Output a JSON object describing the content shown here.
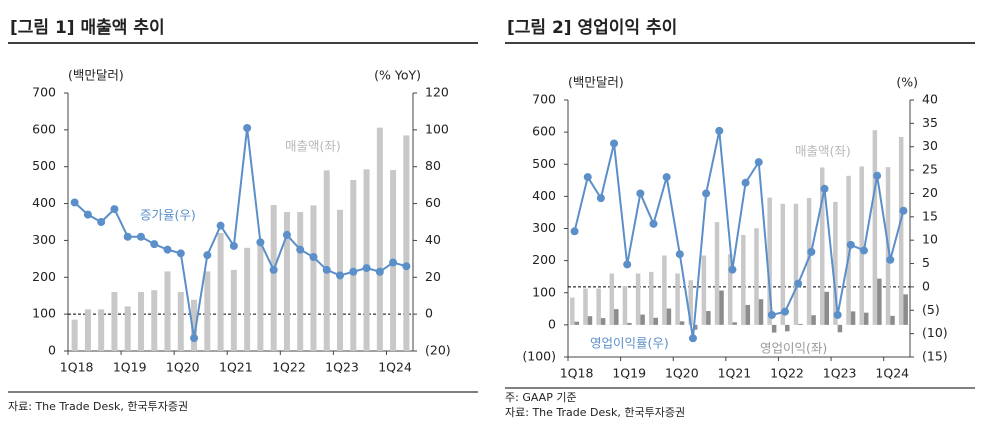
{
  "charts_title_note": null,
  "chart_data": [
    {
      "type": "combo",
      "title": "[그림 1] 매출액 추이",
      "ylabel": "(백만달러)",
      "y2label": "(% YoY)",
      "source": "자료: The Trade Desk, 한국투자증권",
      "categories": [
        "1Q18",
        null,
        null,
        null,
        "1Q19",
        null,
        null,
        null,
        "1Q20",
        null,
        null,
        null,
        "1Q21",
        null,
        null,
        null,
        "1Q22",
        null,
        null,
        null,
        "1Q23",
        null,
        null,
        null,
        "1Q24",
        null
      ],
      "series": [
        {
          "name": "매출액(좌)",
          "kind": "bar",
          "color": "#c8c8c8",
          "values": [
            85,
            113,
            113,
            160,
            121,
            160,
            165,
            216,
            160,
            139,
            216,
            320,
            220,
            280,
            301,
            396,
            377,
            377,
            395,
            490,
            383,
            464,
            493,
            606,
            491,
            585
          ]
        },
        {
          "name": "증가율(우)",
          "kind": "line",
          "axis": "y2",
          "color": "#5b8fc9",
          "values": [
            60.6,
            54,
            50,
            57,
            42,
            42,
            38,
            35,
            33,
            -13,
            32,
            48,
            37,
            101,
            39,
            24,
            43,
            35,
            31,
            24,
            21,
            23,
            25,
            23,
            28,
            26
          ]
        }
      ],
      "ylim": [
        0,
        700
      ],
      "yticks": [
        0,
        100,
        200,
        300,
        400,
        500,
        600,
        700
      ],
      "y2lim": [
        -20,
        120
      ],
      "y2ticks": [
        {
          "value": -20,
          "label": "(20)"
        },
        0,
        20,
        40,
        60,
        80,
        100,
        120
      ]
    },
    {
      "type": "combo",
      "title": "[그림 2] 영업이익 추이",
      "ylabel": "(백만달러)",
      "y2label": "(%)",
      "note": "주: GAAP 기준",
      "source": "자료: The Trade Desk, 한국투자증권",
      "categories": [
        "1Q18",
        null,
        null,
        null,
        "1Q19",
        null,
        null,
        null,
        "1Q20",
        null,
        null,
        null,
        "1Q21",
        null,
        null,
        null,
        "1Q22",
        null,
        null,
        null,
        "1Q23",
        null,
        null,
        null,
        "1Q24",
        null
      ],
      "series": [
        {
          "name": "매출액(좌)",
          "kind": "bar",
          "color": "#c8c8c8",
          "values": [
            85,
            113,
            113,
            160,
            121,
            160,
            165,
            216,
            160,
            139,
            216,
            320,
            220,
            280,
            301,
            396,
            377,
            377,
            395,
            490,
            383,
            464,
            493,
            606,
            491,
            585
          ]
        },
        {
          "name": "영업이익(좌)",
          "kind": "bar",
          "color": "#8c8c8c",
          "values": [
            10,
            27,
            21,
            49,
            6,
            32,
            22,
            51,
            11,
            -15,
            43,
            107,
            8,
            62,
            80,
            -24,
            -20,
            3,
            30,
            103,
            -23,
            42,
            38,
            144,
            28,
            95
          ]
        },
        {
          "name": "영업이익률(우)",
          "kind": "line",
          "axis": "y2",
          "color": "#5b8fc9",
          "values": [
            11.9,
            23.5,
            19,
            30.7,
            4.8,
            20,
            13.5,
            23.5,
            7,
            -11,
            20,
            33.4,
            3.7,
            22.3,
            26.7,
            -6,
            -5.3,
            0.7,
            7.5,
            21,
            -6,
            9,
            7.8,
            23.8,
            5.8,
            16.3
          ]
        }
      ],
      "ylim": [
        -100,
        700
      ],
      "yticks": [
        {
          "value": -100,
          "label": "(100)"
        },
        0,
        100,
        200,
        300,
        400,
        500,
        600,
        700
      ],
      "y2lim": [
        -15,
        40
      ],
      "y2ticks": [
        {
          "value": -15,
          "label": "(15)"
        },
        {
          "value": -10,
          "label": "(10)"
        },
        {
          "value": -5,
          "label": "(5)"
        },
        0,
        5,
        10,
        15,
        20,
        25,
        30,
        35,
        40
      ]
    }
  ]
}
